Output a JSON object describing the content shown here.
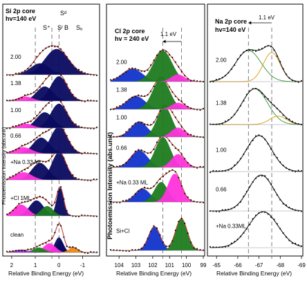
{
  "chart_data": [
    {
      "type": "line",
      "subtype": "xps-spectra-stack",
      "title_lines": [
        "Si 2p core",
        "hv=140 eV"
      ],
      "xlabel": "Relative Binding Energy (eV)",
      "ylabel": "Photoemission Intensity (abs.unit)",
      "xlim": [
        2.2,
        -1.6
      ],
      "x_ticks": [
        2,
        1,
        0,
        -1
      ],
      "component_labels": [
        {
          "text": "S⁺",
          "x": 0.85
        },
        {
          "text": "Sᵈ",
          "x": 0.25
        },
        {
          "text": "Sʳ",
          "x": 0.1
        },
        {
          "text": "B",
          "x": -0.05
        },
        {
          "text": "Sᵤ",
          "x": -0.7
        }
      ],
      "markers": [
        {
          "x": 1.0
        },
        {
          "x": 0.3
        },
        {
          "x": 0.0
        }
      ],
      "spectra": [
        {
          "label": "clean",
          "peaks": [
            [
              0.0,
              0.9,
              0.18
            ],
            [
              -0.05,
              0.7,
              0.15
            ],
            [
              0.4,
              0.55,
              0.25
            ],
            [
              0.85,
              0.3,
              0.25
            ],
            [
              -0.6,
              0.3,
              0.2
            ],
            [
              1.6,
              0.15,
              0.3
            ]
          ]
        },
        {
          "label": "+Cl 1ML",
          "peaks": [
            [
              -0.05,
              1.0,
              0.15
            ],
            [
              0.95,
              0.55,
              0.3
            ],
            [
              1.6,
              0.4,
              0.3
            ],
            [
              0.5,
              0.35,
              0.25
            ]
          ]
        },
        {
          "label": "+Na 0.33 ML",
          "peaks": [
            [
              0.0,
              0.9,
              0.3
            ],
            [
              0.8,
              0.55,
              0.35
            ],
            [
              1.5,
              0.25,
              0.35
            ]
          ]
        },
        {
          "label": "0.66",
          "peaks": [
            [
              0.0,
              0.85,
              0.35
            ],
            [
              0.75,
              0.5,
              0.35
            ],
            [
              1.5,
              0.2,
              0.35
            ]
          ]
        },
        {
          "label": "1.00",
          "peaks": [
            [
              0.0,
              0.85,
              0.35
            ],
            [
              0.6,
              0.55,
              0.35
            ],
            [
              1.4,
              0.15,
              0.3
            ]
          ]
        },
        {
          "label": "1.38",
          "peaks": [
            [
              0.0,
              0.85,
              0.35
            ],
            [
              0.6,
              0.5,
              0.35
            ],
            [
              1.4,
              0.15,
              0.3
            ]
          ]
        },
        {
          "label": "2.00",
          "peaks": [
            [
              0.1,
              0.9,
              0.5
            ],
            [
              0.8,
              0.4,
              0.4
            ]
          ]
        }
      ]
    },
    {
      "type": "line",
      "subtype": "xps-spectra-stack",
      "title_lines": [
        "Cl 2p core",
        "hv = 240 eV"
      ],
      "xlabel": "Relative Binding Energy (eV)",
      "ylabel": "Photoemission Intensity (abs.unit)",
      "xlim": [
        104.5,
        99.0
      ],
      "x_ticks": [
        104,
        103,
        102,
        101,
        100,
        99
      ],
      "annotation": {
        "text": "1.1 eV",
        "arrow_from": 100.3,
        "arrow_to": 101.4
      },
      "markers": [
        {
          "x": 101.4
        },
        {
          "x": 100.3
        }
      ],
      "spectra": [
        {
          "label": "Si+Cl",
          "peaks": [
            [
              101.9,
              0.75,
              0.35
            ],
            [
              100.3,
              1.0,
              0.35
            ]
          ]
        },
        {
          "label": "+Na 0.33 ML",
          "peaks": [
            [
              102.6,
              0.4,
              0.45
            ],
            [
              101.5,
              0.6,
              0.4
            ],
            [
              100.7,
              0.85,
              0.4
            ]
          ]
        },
        {
          "label": "0.66",
          "peaks": [
            [
              102.8,
              0.45,
              0.5
            ],
            [
              101.4,
              0.8,
              0.45
            ],
            [
              100.5,
              0.35,
              0.4
            ]
          ]
        },
        {
          "label": "1.00",
          "peaks": [
            [
              102.8,
              0.4,
              0.5
            ],
            [
              101.3,
              0.8,
              0.45
            ],
            [
              100.5,
              0.25,
              0.4
            ]
          ]
        },
        {
          "label": "1.38",
          "peaks": [
            [
              103.0,
              0.4,
              0.55
            ],
            [
              101.5,
              0.95,
              0.5
            ],
            [
              100.5,
              0.2,
              0.4
            ]
          ]
        },
        {
          "label": "2.00",
          "peaks": [
            [
              103.2,
              0.35,
              0.6
            ],
            [
              101.4,
              0.85,
              0.55
            ],
            [
              100.5,
              0.2,
              0.4
            ]
          ]
        }
      ]
    },
    {
      "type": "line",
      "subtype": "xps-spectra-stack",
      "title_lines": [
        "Na 2p core",
        "hv=140 eV"
      ],
      "xlabel": "Relative Binding Energy (eV)",
      "ylabel": "",
      "xlim": [
        -64.7,
        -69.0
      ],
      "x_ticks": [
        -65,
        -66,
        -67,
        -68,
        -69
      ],
      "annotation": {
        "text": "1.1 eV",
        "arrow_from": -67.6,
        "arrow_to": -66.5
      },
      "markers": [
        {
          "x": -66.5
        },
        {
          "x": -67.6
        }
      ],
      "spectra": [
        {
          "label": "+Na 0.33ML",
          "peaks": [
            [
              -67.2,
              0.8,
              0.7
            ]
          ]
        },
        {
          "label": "0.66",
          "peaks": [
            [
              -67.1,
              0.85,
              0.6
            ]
          ]
        },
        {
          "label": "1.00",
          "peaks": [
            [
              -67.0,
              0.9,
              0.6
            ]
          ]
        },
        {
          "label": "1.38",
          "peaks": [
            [
              -66.8,
              0.85,
              0.6
            ],
            [
              -67.9,
              0.2,
              0.4
            ]
          ]
        },
        {
          "label": "2.00",
          "peaks": [
            [
              -66.5,
              0.75,
              0.6
            ],
            [
              -67.6,
              0.7,
              0.4
            ]
          ]
        }
      ]
    }
  ],
  "colors": {
    "fit_line": "#c0392b",
    "data_points": "#111111",
    "component_green": "#1e7b1e",
    "component_blue": "#1133cc",
    "component_magenta": "#ff33dd",
    "component_orange": "#e88a14",
    "component_cyan": "#44ccee",
    "component_navy": "#0a0a60",
    "component_purple": "#8a2be2",
    "na_green_line": "#3c9a3c",
    "na_orange_line": "#e0a020",
    "envelope_black": "#000000"
  }
}
